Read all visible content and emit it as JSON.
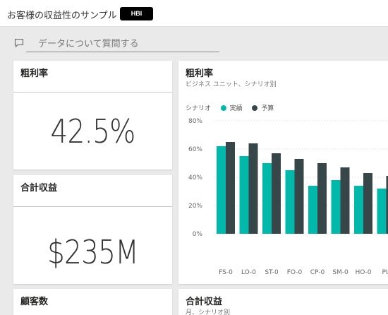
{
  "header": {
    "title": "お客様の収益性のサンプル",
    "badge": "HBI"
  },
  "qna": {
    "placeholder": "データについて質問する",
    "icon": "chat-bubble-icon"
  },
  "tiles": {
    "gross_margin": {
      "title": "粗利率",
      "value": "42.5%"
    },
    "total_revenue": {
      "title": "合計収益",
      "value": "$235M"
    },
    "customers": {
      "title": "顧客数"
    },
    "chart": {
      "title": "粗利率",
      "subtitle": "ビジネス ユニット、シナリオ別"
    },
    "revenue2": {
      "title": "合計収益",
      "subtitle": "月、シナリオ別"
    }
  },
  "colors": {
    "actual": "#01b8aa",
    "budget": "#374649"
  },
  "chart_data": {
    "type": "bar",
    "legend_title": "シナリオ",
    "categories": [
      "FS-0",
      "LO-0",
      "ST-0",
      "FO-0",
      "CP-0",
      "SM-0",
      "HO-0",
      "PU"
    ],
    "series": [
      {
        "name": "実績",
        "values": [
          0.62,
          0.55,
          0.5,
          0.45,
          0.34,
          0.38,
          0.34,
          0.32
        ]
      },
      {
        "name": "予算",
        "values": [
          0.65,
          0.64,
          0.57,
          0.53,
          0.5,
          0.47,
          0.43,
          0.41
        ]
      }
    ],
    "yticks": [
      "0%",
      "20%",
      "40%",
      "60%",
      "80%"
    ],
    "ylim": [
      0,
      0.8
    ],
    "legend_position": "top-left",
    "grid": true
  }
}
